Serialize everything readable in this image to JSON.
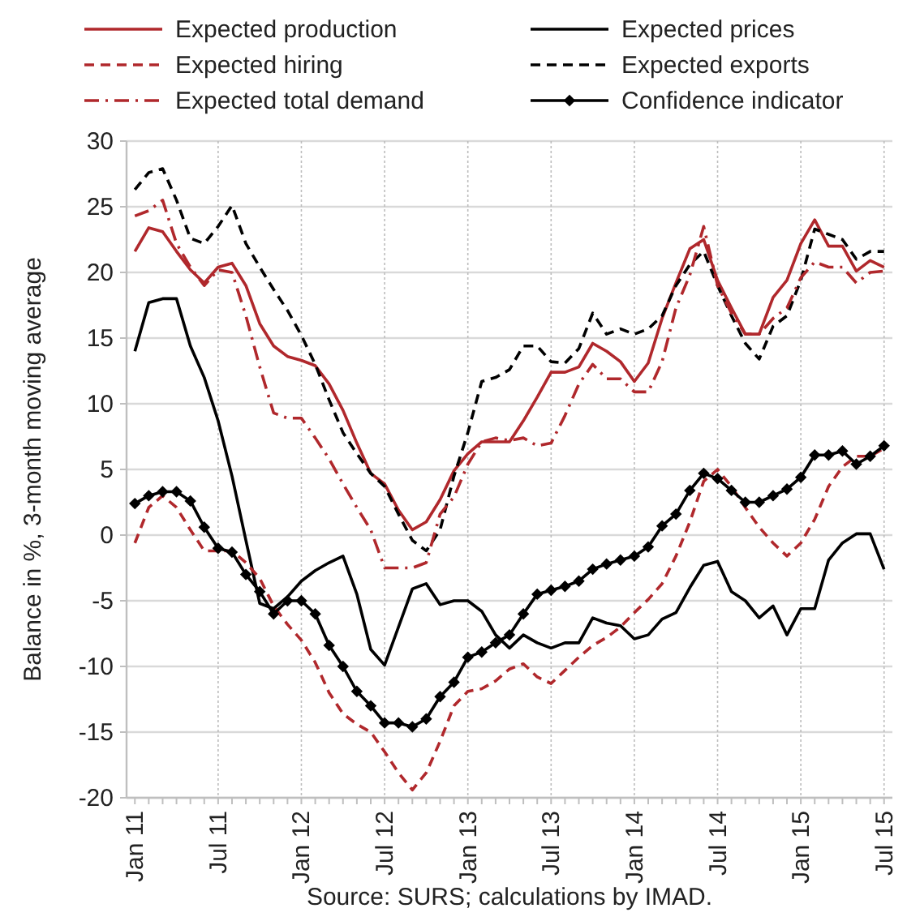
{
  "chart_data": {
    "type": "line",
    "ylabel": "Balance in %, 3-month moving average",
    "annotations": [
      "Source: SURS; calculations by IMAD."
    ],
    "categories": [
      "Jan 11",
      null,
      null,
      null,
      null,
      null,
      "Jul 11",
      null,
      null,
      null,
      null,
      null,
      "Jan 12",
      null,
      null,
      null,
      null,
      null,
      "Jul 12",
      null,
      null,
      null,
      null,
      null,
      "Jan 13",
      null,
      null,
      null,
      null,
      null,
      "Jul 13",
      null,
      null,
      null,
      null,
      null,
      "Jan 14",
      null,
      null,
      null,
      null,
      null,
      "Jul 14",
      null,
      null,
      null,
      null,
      null,
      "Jan 15",
      null,
      null,
      null,
      null,
      null,
      "Jul 15"
    ],
    "ylim": [
      -20,
      30
    ],
    "yticks": [
      -20,
      -15,
      -10,
      -5,
      0,
      5,
      10,
      15,
      20,
      25,
      30
    ],
    "grid": true,
    "legend": "top",
    "series": [
      {
        "name": "Expected production",
        "color": "#b0282c",
        "line_style": "solid",
        "marker": "none",
        "values": [
          21.6,
          23.4,
          23.1,
          21.6,
          20.2,
          19.2,
          20.4,
          20.7,
          19.0,
          16.1,
          14.4,
          13.6,
          13.3,
          12.9,
          11.5,
          9.5,
          7.0,
          4.7,
          3.9,
          1.9,
          0.4,
          1.0,
          2.7,
          4.9,
          6.2,
          7.1,
          7.1,
          7.1,
          8.7,
          10.5,
          12.4,
          12.4,
          12.8,
          14.6,
          14.0,
          13.2,
          11.7,
          13.1,
          16.5,
          19.2,
          21.8,
          22.5,
          19.4,
          17.3,
          15.3,
          15.3,
          18.1,
          19.4,
          22.2,
          24.0,
          22.0,
          22.0,
          20.1,
          20.9,
          20.4
        ]
      },
      {
        "name": "Expected prices",
        "color": "#000000",
        "line_style": "solid",
        "marker": "none",
        "values": [
          14.0,
          17.7,
          18.0,
          18.0,
          14.4,
          12.0,
          8.7,
          4.5,
          -0.4,
          -5.2,
          -5.6,
          -4.7,
          -3.5,
          -2.7,
          -2.1,
          -1.6,
          -4.5,
          -8.7,
          -9.9,
          -7.0,
          -4.1,
          -3.7,
          -5.3,
          -5.0,
          -5.0,
          -5.8,
          -7.6,
          -8.6,
          -7.6,
          -8.2,
          -8.6,
          -8.2,
          -8.2,
          -6.3,
          -6.7,
          -6.9,
          -7.9,
          -7.6,
          -6.4,
          -5.9,
          -4.0,
          -2.3,
          -2.0,
          -4.3,
          -5.0,
          -6.3,
          -5.4,
          -7.6,
          -5.6,
          -5.6,
          -1.9,
          -0.6,
          0.1,
          0.1,
          -2.6
        ]
      },
      {
        "name": "Expected hiring",
        "color": "#b0282c",
        "line_style": "dashed",
        "marker": "none",
        "values": [
          -0.6,
          2.1,
          3.0,
          2.1,
          0.4,
          -1.2,
          -1.2,
          -1.2,
          -2.1,
          -3.3,
          -5.4,
          -6.8,
          -8.0,
          -9.7,
          -12.0,
          -13.6,
          -14.4,
          -15.0,
          -16.5,
          -18.1,
          -19.4,
          -18.1,
          -15.7,
          -13.0,
          -11.9,
          -11.7,
          -11.1,
          -10.2,
          -9.8,
          -10.8,
          -11.3,
          -10.3,
          -9.3,
          -8.4,
          -7.8,
          -7.0,
          -5.9,
          -4.9,
          -3.7,
          -1.6,
          1.0,
          4.1,
          5.0,
          3.7,
          2.1,
          0.6,
          -0.6,
          -1.6,
          -0.6,
          1.2,
          3.7,
          5.2,
          6.0,
          6.0,
          6.6
        ]
      },
      {
        "name": "Expected exports",
        "color": "#000000",
        "line_style": "dashed",
        "marker": "none",
        "values": [
          26.3,
          27.6,
          27.9,
          25.5,
          22.6,
          22.2,
          23.5,
          25.1,
          22.2,
          20.4,
          18.7,
          17.1,
          15.2,
          13.0,
          10.3,
          7.8,
          6.2,
          4.7,
          3.7,
          1.6,
          -0.4,
          -1.2,
          0.4,
          4.5,
          7.8,
          11.7,
          12.0,
          12.6,
          14.4,
          14.4,
          13.2,
          13.1,
          14.2,
          16.9,
          15.3,
          15.7,
          15.3,
          15.7,
          16.7,
          19.0,
          20.6,
          21.6,
          19.0,
          16.7,
          14.6,
          13.4,
          15.9,
          16.7,
          19.4,
          23.3,
          22.9,
          22.5,
          21.0,
          21.6,
          21.6
        ]
      },
      {
        "name": "Expected total demand",
        "color": "#b0282c",
        "line_style": "dashdot",
        "marker": "none",
        "values": [
          24.3,
          24.7,
          25.5,
          22.2,
          20.4,
          19.0,
          20.2,
          20.0,
          16.7,
          12.8,
          9.3,
          8.9,
          8.9,
          7.4,
          5.8,
          3.9,
          2.1,
          0.4,
          -2.5,
          -2.5,
          -2.5,
          -2.1,
          1.6,
          2.9,
          5.4,
          7.1,
          7.4,
          7.2,
          7.4,
          6.8,
          7.0,
          9.1,
          11.5,
          13.0,
          11.9,
          11.9,
          10.9,
          10.9,
          13.2,
          17.3,
          19.8,
          23.5,
          19.0,
          16.9,
          15.3,
          15.3,
          16.5,
          17.3,
          19.6,
          20.8,
          20.4,
          20.4,
          19.2,
          20.0,
          20.1
        ]
      },
      {
        "name": "Confidence indicator",
        "color": "#000000",
        "line_style": "solid",
        "marker": "diamond",
        "values": [
          2.4,
          3.0,
          3.3,
          3.3,
          2.6,
          0.6,
          -1.0,
          -1.3,
          -3.0,
          -4.3,
          -6.0,
          -5.0,
          -5.0,
          -6.0,
          -8.4,
          -10.0,
          -11.9,
          -13.0,
          -14.3,
          -14.3,
          -14.6,
          -14.0,
          -12.3,
          -11.2,
          -9.3,
          -8.9,
          -8.2,
          -7.6,
          -6.0,
          -4.5,
          -4.2,
          -3.9,
          -3.5,
          -2.6,
          -2.2,
          -1.9,
          -1.6,
          -0.9,
          0.7,
          1.6,
          3.4,
          4.7,
          4.3,
          3.4,
          2.5,
          2.5,
          3.0,
          3.5,
          4.4,
          6.1,
          6.1,
          6.4,
          5.4,
          6.0,
          6.8
        ]
      }
    ]
  }
}
